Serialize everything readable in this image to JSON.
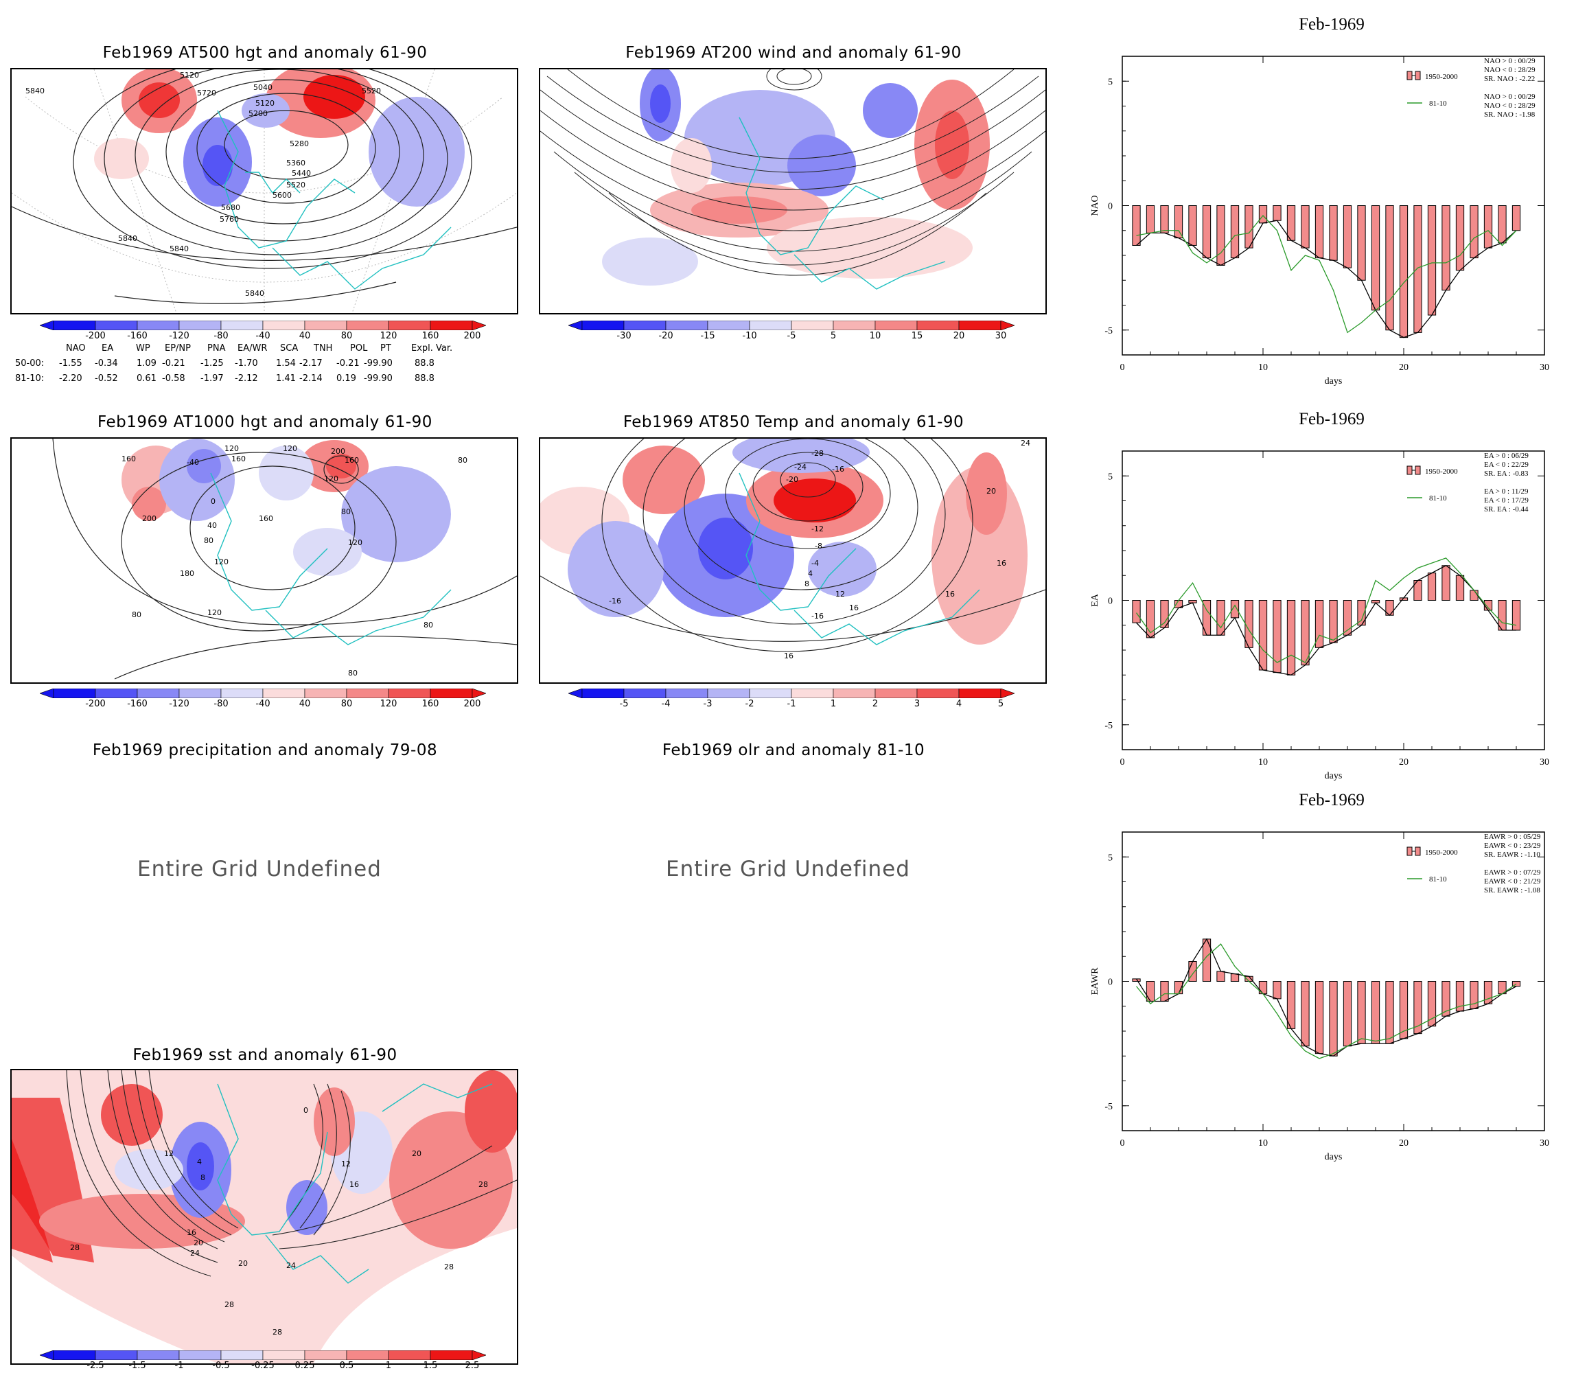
{
  "maps": [
    {
      "title": "Feb1969 AT500 hgt and anomaly 61-90"
    },
    {
      "title": "Feb1969 AT200 wind and anomaly 61-90"
    },
    {
      "title": "Feb1969 AT1000 hgt and anomaly 61-90"
    },
    {
      "title": "Feb1969 AT850 Temp and anomaly 61-90"
    },
    {
      "title": "Feb1969 precipitation and anomaly 79-08",
      "message": "Entire Grid Undefined"
    },
    {
      "title": "Feb1969 olr and anomaly 81-10",
      "message": "Entire Grid Undefined"
    },
    {
      "title": "Feb1969 sst and anomaly 61-90"
    }
  ],
  "map_contour_labels": {
    "at500": [
      "5840",
      "5120",
      "5720",
      "5040",
      "5120",
      "5200",
      "5520",
      "5280",
      "5360",
      "5440",
      "5520",
      "5600",
      "5680",
      "5760",
      "5840",
      "5840",
      "5840"
    ],
    "at1000": [
      "160",
      "-40",
      "120",
      "160",
      "120",
      "200",
      "160",
      "80",
      "0",
      "40",
      "80",
      "200",
      "120",
      "160",
      "180",
      "80",
      "120",
      "80",
      "80",
      "80",
      "80",
      "120"
    ],
    "at850": [
      "-28",
      "-24",
      "-20",
      "-16",
      "-12",
      "-8",
      "-4",
      "4",
      "8",
      "12",
      "16",
      "16",
      "16",
      "16",
      "20",
      "-16",
      "24",
      "16"
    ],
    "sst": [
      "0",
      "4",
      "8",
      "12",
      "12",
      "16",
      "16",
      "20",
      "20",
      "24",
      "24",
      "28",
      "28",
      "28",
      "28",
      "28",
      "20"
    ]
  },
  "colorbars": {
    "hgt": [
      "-200",
      "-160",
      "-120",
      "-80",
      "-40",
      "40",
      "80",
      "120",
      "160",
      "200"
    ],
    "wind": [
      "-30",
      "-20",
      "-15",
      "-10",
      "-5",
      "5",
      "10",
      "15",
      "20",
      "30"
    ],
    "temp": [
      "-5",
      "-4",
      "-3",
      "-2",
      "-1",
      "1",
      "2",
      "3",
      "4",
      "5"
    ],
    "sst": [
      "-2.5",
      "-1.5",
      "-1",
      "-0.5",
      "-0.25",
      "0.25",
      "0.5",
      "1",
      "1.5",
      "2.5"
    ]
  },
  "colors": {
    "blue": [
      "#1515f0",
      "#5555f5",
      "#8888f5",
      "#b4b4f5",
      "#dcdcf8"
    ],
    "red": [
      "#fbdcdc",
      "#f7b4b4",
      "#f48888",
      "#f05555",
      "#ec1616"
    ],
    "coast": "#20c0c0",
    "bar_fill": "#f28b8b",
    "line_8110": "#2a9a2a"
  },
  "index_table": {
    "headers": [
      "NAO",
      "EA",
      "WP",
      "EP/NP",
      "PNA",
      "EA/WR",
      "SCA",
      "TNH",
      "POL",
      "PT",
      "Expl. Var."
    ],
    "rows": [
      {
        "label": "50-00:",
        "values": [
          "-1.55",
          "-0.34",
          "1.09",
          "-0.21",
          "-1.25",
          "-1.70",
          "1.54",
          "-2.17",
          "-0.21",
          "-99.90",
          "88.8"
        ]
      },
      {
        "label": "81-10:",
        "values": [
          "-2.20",
          "-0.52",
          "0.61",
          "-0.58",
          "-1.97",
          "-2.12",
          "1.41",
          "-2.14",
          "0.19",
          "-99.90",
          "88.8"
        ]
      }
    ]
  },
  "chart_data": [
    {
      "type": "bar",
      "title": "Feb-1969",
      "xlabel": "days",
      "ylabel": "NAO",
      "xlim": [
        0,
        30
      ],
      "ylim": [
        -6,
        6
      ],
      "xticks": [
        "0",
        "10",
        "20",
        "30"
      ],
      "yticks": [
        "5",
        "0",
        "-5"
      ],
      "legend": {
        "bar": "1950-2000",
        "line": "81-10"
      },
      "stats": [
        "NAO > 0 : 00/29",
        "NAO < 0 : 28/29",
        "SR. NAO : -2.22",
        "NAO > 0 : 00/29",
        "NAO < 0 : 28/29",
        "SR. NAO : -1.98"
      ],
      "x": [
        1,
        2,
        3,
        4,
        5,
        6,
        7,
        8,
        9,
        10,
        11,
        12,
        13,
        14,
        15,
        16,
        17,
        18,
        19,
        20,
        21,
        22,
        23,
        24,
        25,
        26,
        27,
        28
      ],
      "series": [
        {
          "name": "1950-2000",
          "values": [
            -1.6,
            -1.1,
            -1.1,
            -1.3,
            -1.6,
            -2.1,
            -2.4,
            -2.1,
            -1.7,
            -0.7,
            -0.6,
            -1.4,
            -1.7,
            -2.1,
            -2.2,
            -2.5,
            -3.0,
            -4.2,
            -5.0,
            -5.3,
            -5.1,
            -4.4,
            -3.4,
            -2.6,
            -2.1,
            -1.7,
            -1.5,
            -1.0
          ]
        },
        {
          "name": "81-10",
          "values": [
            -1.2,
            -1.1,
            -1.0,
            -1.0,
            -1.9,
            -2.3,
            -1.9,
            -1.2,
            -1.1,
            -0.4,
            -1.0,
            -2.6,
            -2.0,
            -2.2,
            -3.4,
            -5.1,
            -4.7,
            -4.2,
            -3.8,
            -3.1,
            -2.5,
            -2.3,
            -2.3,
            -2.0,
            -1.3,
            -1.0,
            -1.6,
            -1.0
          ]
        }
      ]
    },
    {
      "type": "bar",
      "title": "Feb-1969",
      "xlabel": "days",
      "ylabel": "EA",
      "xlim": [
        0,
        30
      ],
      "ylim": [
        -6,
        6
      ],
      "xticks": [
        "0",
        "10",
        "20",
        "30"
      ],
      "yticks": [
        "5",
        "0",
        "-5"
      ],
      "legend": {
        "bar": "1950-2000",
        "line": "81-10"
      },
      "stats": [
        "EA > 0 : 06/29",
        "EA < 0 : 22/29",
        "SR. EA : -0.83",
        "EA > 0 : 11/29",
        "EA < 0 : 17/29",
        "SR. EA : -0.44"
      ],
      "x": [
        1,
        2,
        3,
        4,
        5,
        6,
        7,
        8,
        9,
        10,
        11,
        12,
        13,
        14,
        15,
        16,
        17,
        18,
        19,
        20,
        21,
        22,
        23,
        24,
        25,
        26,
        27,
        28
      ],
      "series": [
        {
          "name": "1950-2000",
          "values": [
            -0.9,
            -1.5,
            -1.1,
            -0.3,
            -0.1,
            -1.4,
            -1.4,
            -0.7,
            -1.9,
            -2.8,
            -2.9,
            -3.0,
            -2.6,
            -1.9,
            -1.7,
            -1.4,
            -1.0,
            -0.1,
            -0.6,
            0.1,
            0.8,
            1.1,
            1.4,
            1.0,
            0.4,
            -0.4,
            -1.2,
            -1.2
          ]
        },
        {
          "name": "81-10",
          "values": [
            -0.5,
            -1.3,
            -0.9,
            0.0,
            0.7,
            -0.4,
            -1.1,
            -0.2,
            -1.2,
            -2.0,
            -2.5,
            -2.2,
            -2.5,
            -1.4,
            -1.6,
            -1.2,
            -0.8,
            0.8,
            0.4,
            0.9,
            1.3,
            1.5,
            1.7,
            1.1,
            0.4,
            -0.3,
            -0.9,
            -1.0
          ]
        }
      ]
    },
    {
      "type": "bar",
      "title": "Feb-1969",
      "xlabel": "days",
      "ylabel": "EAWR",
      "xlim": [
        0,
        30
      ],
      "ylim": [
        -6,
        6
      ],
      "xticks": [
        "0",
        "10",
        "20",
        "30"
      ],
      "yticks": [
        "5",
        "0",
        "-5"
      ],
      "legend": {
        "bar": "1950-2000",
        "line": "81-10"
      },
      "stats": [
        "EAWR > 0 : 05/29",
        "EAWR < 0 : 23/29",
        "SR. EAWR : -1.10",
        "EAWR > 0 : 07/29",
        "EAWR < 0 : 21/29",
        "SR. EAWR : -1.08"
      ],
      "x": [
        1,
        2,
        3,
        4,
        5,
        6,
        7,
        8,
        9,
        10,
        11,
        12,
        13,
        14,
        15,
        16,
        17,
        18,
        19,
        20,
        21,
        22,
        23,
        24,
        25,
        26,
        27,
        28
      ],
      "series": [
        {
          "name": "1950-2000",
          "values": [
            0.1,
            -0.8,
            -0.8,
            -0.5,
            0.8,
            1.7,
            0.4,
            0.3,
            0.2,
            -0.5,
            -0.7,
            -1.9,
            -2.6,
            -2.9,
            -3.0,
            -2.6,
            -2.5,
            -2.5,
            -2.5,
            -2.3,
            -2.1,
            -1.8,
            -1.4,
            -1.2,
            -1.1,
            -0.9,
            -0.5,
            -0.2
          ]
        },
        {
          "name": "81-10",
          "values": [
            -0.2,
            -0.9,
            -0.5,
            -0.5,
            0.3,
            1.0,
            1.5,
            0.6,
            0.0,
            -0.5,
            -1.3,
            -2.2,
            -2.8,
            -3.1,
            -2.9,
            -2.6,
            -2.3,
            -2.4,
            -2.3,
            -2.0,
            -1.8,
            -1.5,
            -1.2,
            -1.0,
            -0.9,
            -0.7,
            -0.5,
            -0.1
          ]
        }
      ]
    }
  ]
}
